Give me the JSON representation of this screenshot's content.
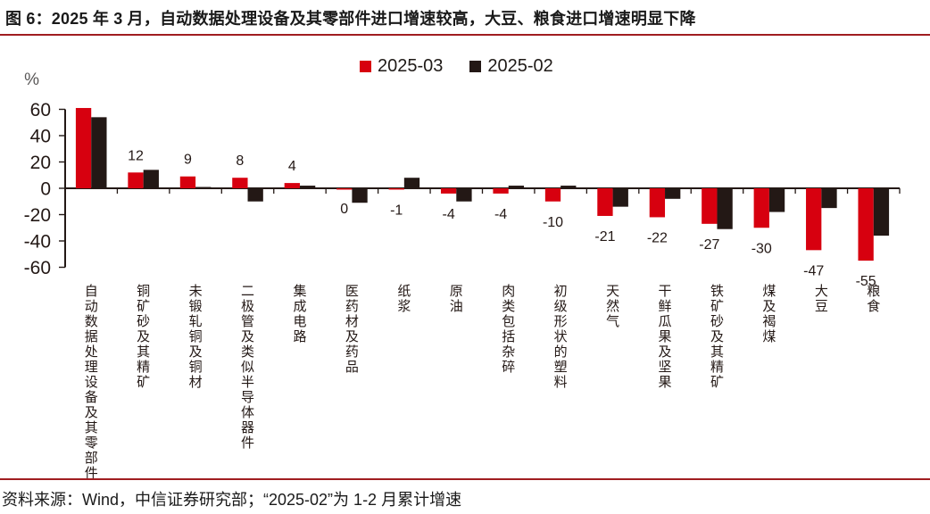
{
  "title": "图 6：2025 年 3 月，自动数据处理设备及其零部件进口增速较高，大豆、粮食进口增速明显下降",
  "footer": "资料来源：Wind，中信证券研究部；“2025-02”为 1-2 月累计增速",
  "colors": {
    "divider": "#A01D20",
    "axis": "#231815",
    "unit_label": "#595757",
    "tick_label": "#231815",
    "value_label": "#231815"
  },
  "chart_data": {
    "type": "bar",
    "unit": "%",
    "title": "",
    "xlabel": "",
    "ylabel": "%",
    "ylim": [
      -60,
      60
    ],
    "y_ticks": [
      60,
      40,
      20,
      0,
      -20,
      -40,
      -60
    ],
    "grid": false,
    "legend_position": "top-center",
    "categories": [
      "自动数据处理设备及其零部件",
      "铜矿砂及其精矿",
      "未锻轧铜及铜材",
      "二极管及类似半导体器件",
      "集成电路",
      "医药材及药品",
      "纸浆",
      "原油",
      "肉类包括杂碎",
      "初级形状的塑料",
      "天然气",
      "干鲜瓜果及坚果",
      "铁矿砂及其精矿",
      "煤及褐煤",
      "大豆",
      "粮食"
    ],
    "series": [
      {
        "name": "2025-03",
        "color": "#D7000F",
        "values": [
          61,
          12,
          9,
          8,
          4,
          0,
          -1,
          -4,
          -4,
          -10,
          -21,
          -22,
          -27,
          -30,
          -47,
          -55
        ]
      },
      {
        "name": "2025-02",
        "color": "#231815",
        "values": [
          54,
          14,
          1,
          -10,
          2,
          -11,
          8,
          -10,
          2,
          2,
          -14,
          -8,
          -31,
          -18,
          -15,
          -36
        ]
      }
    ],
    "data_labels": [
      null,
      "12",
      "9",
      "8",
      "4",
      "0",
      "-1",
      "-4",
      "-4",
      "-10",
      "-21",
      "-22",
      "-27",
      "-30",
      "-47",
      "-55"
    ]
  }
}
